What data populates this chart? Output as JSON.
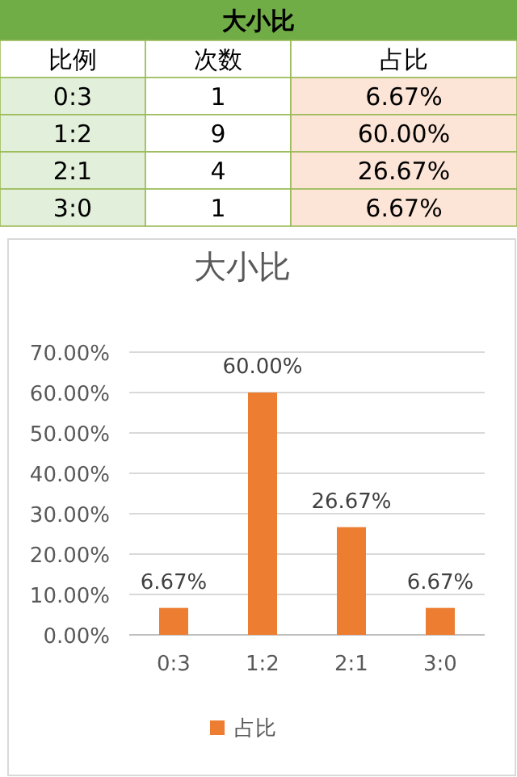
{
  "chart_data": [
    {
      "type": "other",
      "title": "大小比",
      "xlabel": "比例",
      "categories": [
        "0:3",
        "1:2",
        "2:1",
        "3:0"
      ],
      "series": [
        {
          "name": "次数",
          "values": [
            1,
            9,
            4,
            1
          ],
          "value_labels": [
            "1",
            "9",
            "4",
            "1"
          ]
        },
        {
          "name": "占比",
          "color": "#fce4d6",
          "values": [
            6.67,
            60,
            26.67,
            6.67
          ],
          "value_labels": [
            "6.67%",
            "60.00%",
            "26.67%",
            "6.67%"
          ]
        }
      ]
    },
    {
      "type": "bar",
      "title": "大小比",
      "categories": [
        "0:3",
        "1:2",
        "2:1",
        "3:0"
      ],
      "series": [
        {
          "name": "占比",
          "color": "#ed7d31",
          "values": [
            6.67,
            60,
            26.67,
            6.67
          ],
          "value_labels": [
            "6.67%",
            "60.00%",
            "26.67%",
            "6.67%"
          ]
        }
      ],
      "ylim": [
        0,
        70
      ],
      "yticks": [
        {
          "value": 0,
          "label": "0.00%"
        },
        {
          "value": 10,
          "label": "10.00%"
        },
        {
          "value": 20,
          "label": "20.00%"
        },
        {
          "value": 30,
          "label": "30.00%"
        },
        {
          "value": 40,
          "label": "40.00%"
        },
        {
          "value": 50,
          "label": "50.00%"
        },
        {
          "value": 60,
          "label": "60.00%"
        },
        {
          "value": 70,
          "label": "70.00%"
        }
      ],
      "grid": "y",
      "legend": "bottom"
    }
  ]
}
